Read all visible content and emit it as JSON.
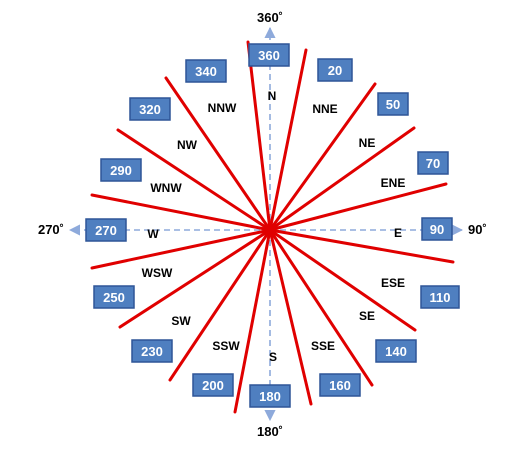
{
  "colors": {
    "ray": "#e00000",
    "box_fill": "#4f7fc0",
    "box_stroke": "#2f5597",
    "axis": "#8eaadb",
    "text": "#000000"
  },
  "axis_labels": {
    "top": "360˚",
    "right": "90˚",
    "bottom": "180˚",
    "left": "270˚"
  },
  "directions": [
    {
      "name": "N",
      "degrees": "360"
    },
    {
      "name": "NNE",
      "degrees": "20"
    },
    {
      "name": "NE",
      "degrees": "50"
    },
    {
      "name": "ENE",
      "degrees": "70"
    },
    {
      "name": "E",
      "degrees": "90"
    },
    {
      "name": "ESE",
      "degrees": "110"
    },
    {
      "name": "SE",
      "degrees": "140"
    },
    {
      "name": "SSE",
      "degrees": "160"
    },
    {
      "name": "S",
      "degrees": "180"
    },
    {
      "name": "SSW",
      "degrees": "200"
    },
    {
      "name": "SW",
      "degrees": "230"
    },
    {
      "name": "WSW",
      "degrees": "250"
    },
    {
      "name": "W",
      "degrees": "270"
    },
    {
      "name": "WNW",
      "degrees": "290"
    },
    {
      "name": "NW",
      "degrees": "320"
    },
    {
      "name": "NNW",
      "degrees": "340"
    }
  ]
}
